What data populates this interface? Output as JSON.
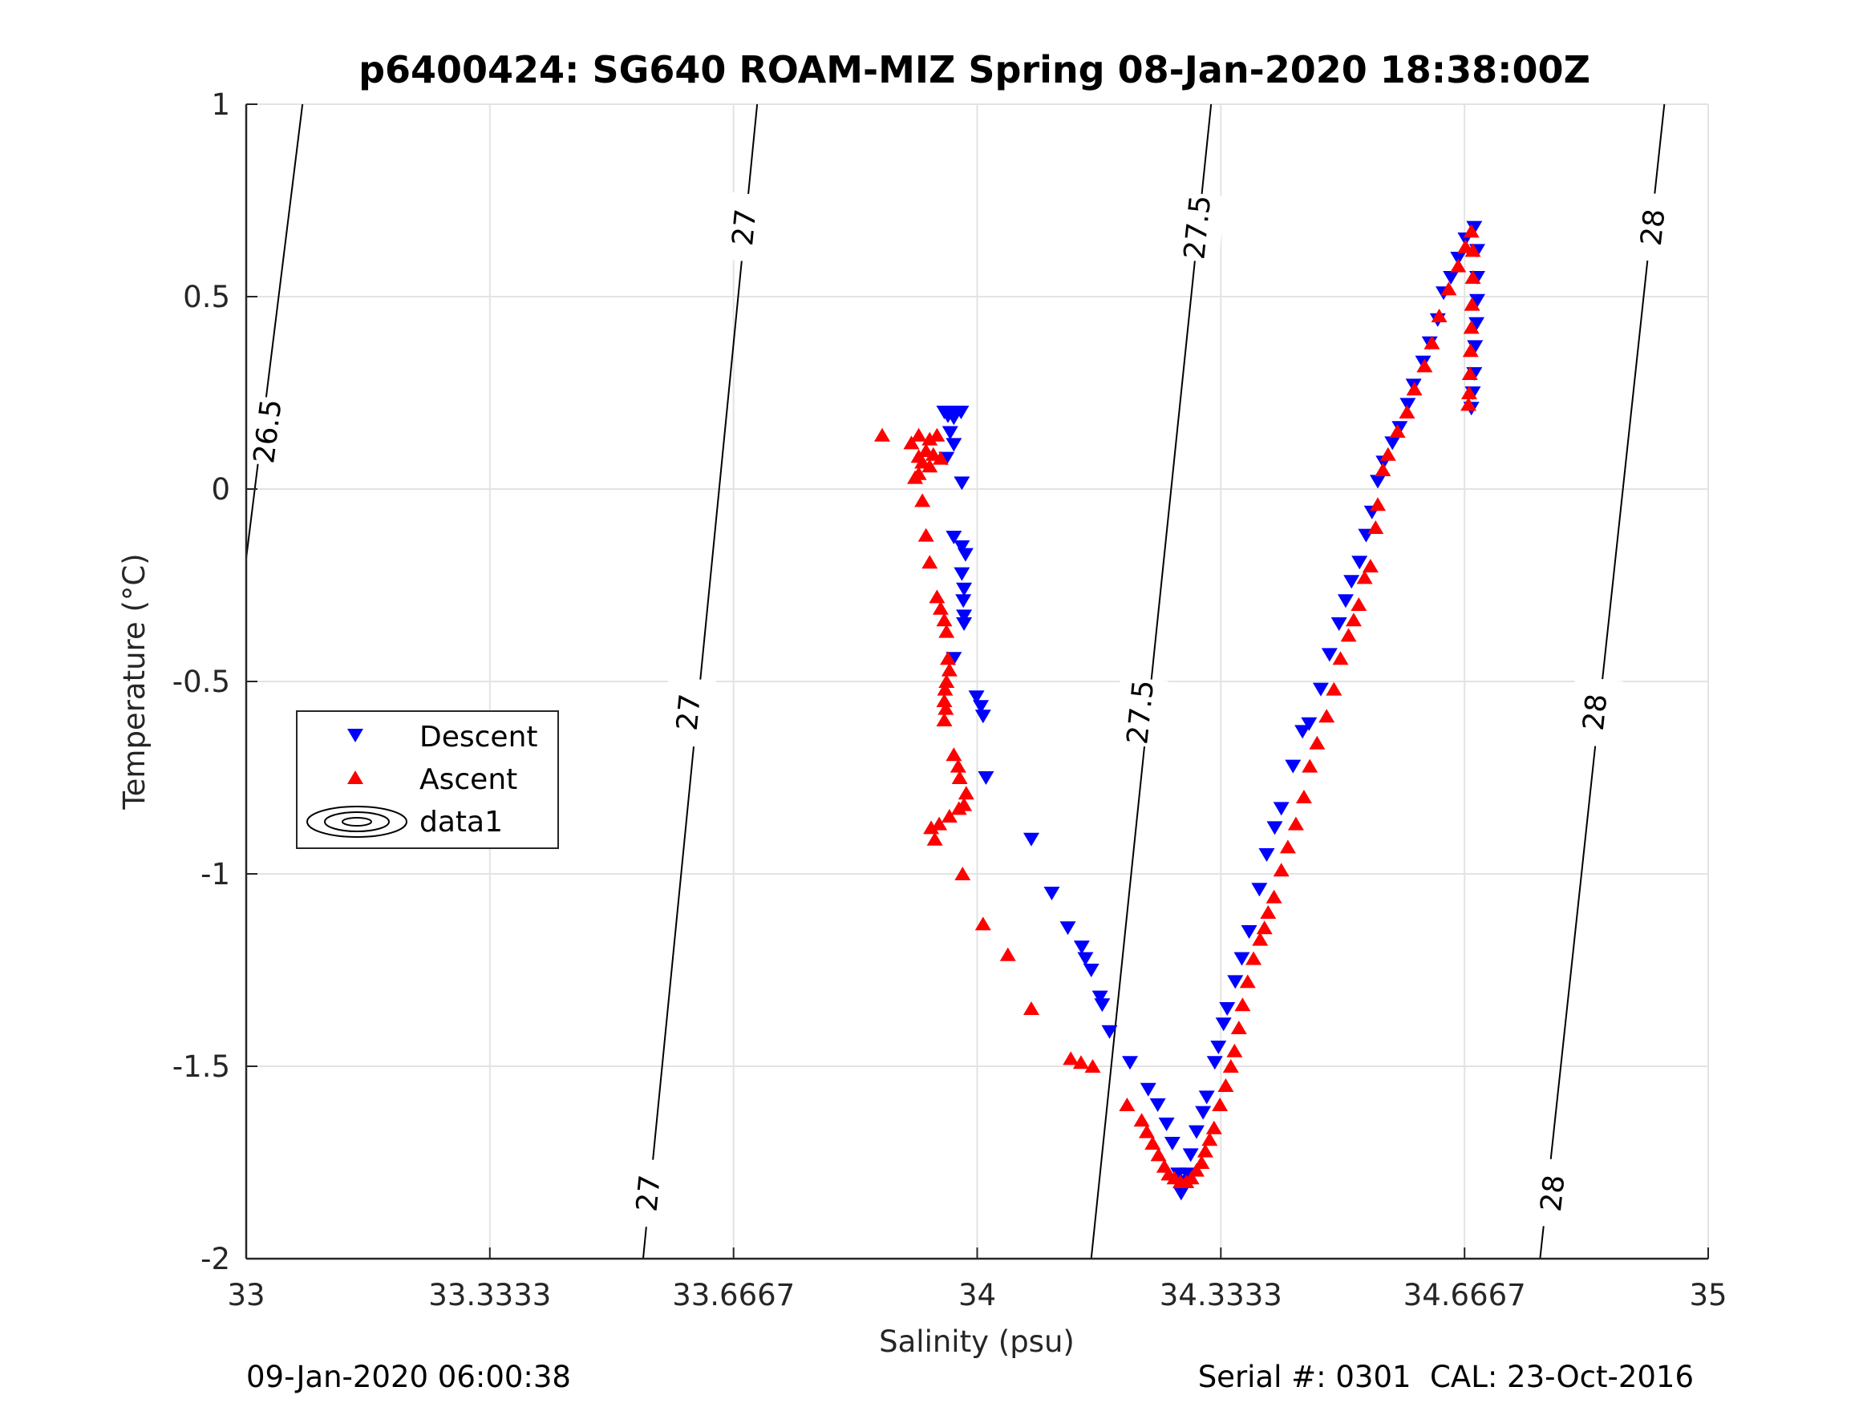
{
  "chart_data": {
    "type": "scatter",
    "title": "p6400424: SG640 ROAM-MIZ Spring 08-Jan-2020 18:38:00Z",
    "xlabel": "Salinity (psu)",
    "ylabel": "Temperature (°C)",
    "xlim": [
      33,
      35
    ],
    "ylim": [
      -2,
      1
    ],
    "xticks": [
      33,
      33.3333,
      33.6667,
      34,
      34.3333,
      34.6667,
      35
    ],
    "xtick_labels": [
      "33",
      "33.3333",
      "33.6667",
      "34",
      "34.3333",
      "34.6667",
      "35"
    ],
    "yticks": [
      -2,
      -1.5,
      -1,
      -0.5,
      0,
      0.5,
      1
    ],
    "ytick_labels": [
      "-2",
      "-1.5",
      "-1",
      "-0.5",
      "0",
      "0.5",
      "1"
    ],
    "grid": true,
    "legend": {
      "placement": "middle-left",
      "entries": [
        {
          "label": "Descent",
          "marker": "triangle-down",
          "color": "#0000ff"
        },
        {
          "label": "Ascent",
          "marker": "triangle-up",
          "color": "#ff0000"
        },
        {
          "label": "data1",
          "marker": "contour",
          "color": "#000000"
        }
      ]
    },
    "footer_left": "09-Jan-2020 06:00:38",
    "footer_right": "Serial #: 0301  CAL: 23-Oct-2016",
    "density_contours": [
      {
        "level": "26.5",
        "points": [
          [
            33.077,
            1.0
          ],
          [
            33.0,
            -0.18
          ]
        ],
        "labels": [
          {
            "text": "26.5",
            "at": [
              33.03,
              0.15
            ]
          }
        ]
      },
      {
        "level": "27",
        "points": [
          [
            33.699,
            1.0
          ],
          [
            33.543,
            -2.0
          ]
        ],
        "labels": [
          {
            "text": "27",
            "at": [
              33.682,
              0.68
            ]
          },
          {
            "text": "27",
            "at": [
              33.606,
              -0.58
            ]
          },
          {
            "text": "27",
            "at": [
              33.551,
              -1.83
            ]
          }
        ]
      },
      {
        "level": "27.5",
        "points": [
          [
            34.32,
            1.0
          ],
          [
            34.156,
            -2.0
          ]
        ],
        "labels": [
          {
            "text": "27.5",
            "at": [
              34.302,
              0.68
            ]
          },
          {
            "text": "27.5",
            "at": [
              34.224,
              -0.58
            ]
          }
        ]
      },
      {
        "level": "28",
        "points": [
          [
            34.94,
            1.0
          ],
          [
            34.77,
            -2.0
          ]
        ],
        "labels": [
          {
            "text": "28",
            "at": [
              34.925,
              0.68
            ]
          },
          {
            "text": "28",
            "at": [
              34.846,
              -0.58
            ]
          },
          {
            "text": "28",
            "at": [
              34.788,
              -1.83
            ]
          }
        ]
      }
    ],
    "series": [
      {
        "name": "Descent",
        "marker": "triangle-down",
        "color": "#0000ff",
        "points": [
          [
            33.955,
            0.2
          ],
          [
            33.962,
            0.2
          ],
          [
            33.97,
            0.2
          ],
          [
            33.978,
            0.2
          ],
          [
            33.96,
            0.19
          ],
          [
            33.968,
            0.185
          ],
          [
            33.963,
            0.147
          ],
          [
            33.968,
            0.116
          ],
          [
            33.958,
            0.08
          ],
          [
            33.979,
            0.016
          ],
          [
            33.968,
            -0.125
          ],
          [
            33.979,
            -0.15
          ],
          [
            33.984,
            -0.17
          ],
          [
            33.979,
            -0.22
          ],
          [
            33.982,
            -0.26
          ],
          [
            33.981,
            -0.29
          ],
          [
            33.982,
            -0.33
          ],
          [
            33.982,
            -0.35
          ],
          [
            33.968,
            -0.44
          ],
          [
            33.999,
            -0.54
          ],
          [
            34.005,
            -0.565
          ],
          [
            34.008,
            -0.59
          ],
          [
            34.012,
            -0.75
          ],
          [
            34.074,
            -0.91
          ],
          [
            34.102,
            -1.05
          ],
          [
            34.124,
            -1.14
          ],
          [
            34.143,
            -1.19
          ],
          [
            34.148,
            -1.22
          ],
          [
            34.156,
            -1.25
          ],
          [
            34.168,
            -1.32
          ],
          [
            34.171,
            -1.34
          ],
          [
            34.181,
            -1.41
          ],
          [
            34.209,
            -1.49
          ],
          [
            34.234,
            -1.56
          ],
          [
            34.247,
            -1.6
          ],
          [
            34.259,
            -1.65
          ],
          [
            34.267,
            -1.7
          ],
          [
            34.275,
            -1.78
          ],
          [
            34.279,
            -1.83
          ],
          [
            34.283,
            -1.8
          ],
          [
            34.287,
            -1.78
          ],
          [
            34.292,
            -1.73
          ],
          [
            34.3,
            -1.67
          ],
          [
            34.309,
            -1.62
          ],
          [
            34.314,
            -1.58
          ],
          [
            34.325,
            -1.49
          ],
          [
            34.33,
            -1.45
          ],
          [
            34.337,
            -1.39
          ],
          [
            34.342,
            -1.35
          ],
          [
            34.353,
            -1.28
          ],
          [
            34.362,
            -1.22
          ],
          [
            34.372,
            -1.15
          ],
          [
            34.386,
            -1.04
          ],
          [
            34.396,
            -0.95
          ],
          [
            34.407,
            -0.88
          ],
          [
            34.416,
            -0.83
          ],
          [
            34.432,
            -0.72
          ],
          [
            34.445,
            -0.63
          ],
          [
            34.454,
            -0.61
          ],
          [
            34.47,
            -0.52
          ],
          [
            34.482,
            -0.43
          ],
          [
            34.495,
            -0.35
          ],
          [
            34.504,
            -0.29
          ],
          [
            34.512,
            -0.24
          ],
          [
            34.523,
            -0.19
          ],
          [
            34.532,
            -0.12
          ],
          [
            34.54,
            -0.06
          ],
          [
            34.548,
            0.02
          ],
          [
            34.556,
            0.07
          ],
          [
            34.568,
            0.12
          ],
          [
            34.578,
            0.16
          ],
          [
            34.589,
            0.22
          ],
          [
            34.597,
            0.27
          ],
          [
            34.61,
            0.33
          ],
          [
            34.619,
            0.38
          ],
          [
            34.63,
            0.44
          ],
          [
            34.638,
            0.51
          ],
          [
            34.648,
            0.55
          ],
          [
            34.658,
            0.6
          ],
          [
            34.668,
            0.65
          ],
          [
            34.68,
            0.68
          ],
          [
            34.684,
            0.62
          ],
          [
            34.684,
            0.55
          ],
          [
            34.684,
            0.49
          ],
          [
            34.683,
            0.43
          ],
          [
            34.681,
            0.37
          ],
          [
            34.68,
            0.3
          ],
          [
            34.678,
            0.25
          ],
          [
            34.676,
            0.21
          ]
        ]
      },
      {
        "name": "Ascent",
        "marker": "triangle-up",
        "color": "#ff0000",
        "points": [
          [
            33.87,
            0.14
          ],
          [
            33.91,
            0.12
          ],
          [
            33.92,
            0.14
          ],
          [
            33.935,
            0.13
          ],
          [
            33.945,
            0.14
          ],
          [
            33.93,
            0.1
          ],
          [
            33.92,
            0.085
          ],
          [
            33.94,
            0.09
          ],
          [
            33.95,
            0.08
          ],
          [
            33.925,
            0.07
          ],
          [
            33.935,
            0.06
          ],
          [
            33.92,
            0.04
          ],
          [
            33.915,
            0.03
          ],
          [
            33.925,
            -0.03
          ],
          [
            33.93,
            -0.12
          ],
          [
            33.935,
            -0.19
          ],
          [
            33.945,
            -0.28
          ],
          [
            33.95,
            -0.31
          ],
          [
            33.955,
            -0.34
          ],
          [
            33.958,
            -0.37
          ],
          [
            33.96,
            -0.44
          ],
          [
            33.962,
            -0.47
          ],
          [
            33.958,
            -0.5
          ],
          [
            33.956,
            -0.52
          ],
          [
            33.955,
            -0.55
          ],
          [
            33.957,
            -0.57
          ],
          [
            33.955,
            -0.6
          ],
          [
            33.968,
            -0.69
          ],
          [
            33.974,
            -0.72
          ],
          [
            33.976,
            -0.75
          ],
          [
            33.985,
            -0.79
          ],
          [
            33.982,
            -0.82
          ],
          [
            33.975,
            -0.83
          ],
          [
            33.962,
            -0.85
          ],
          [
            33.948,
            -0.87
          ],
          [
            33.937,
            -0.88
          ],
          [
            33.942,
            -0.91
          ],
          [
            33.98,
            -1.0
          ],
          [
            34.008,
            -1.13
          ],
          [
            34.042,
            -1.21
          ],
          [
            34.074,
            -1.35
          ],
          [
            34.128,
            -1.48
          ],
          [
            34.142,
            -1.49
          ],
          [
            34.158,
            -1.5
          ],
          [
            34.205,
            -1.6
          ],
          [
            34.225,
            -1.64
          ],
          [
            34.232,
            -1.67
          ],
          [
            34.24,
            -1.7
          ],
          [
            34.248,
            -1.73
          ],
          [
            34.256,
            -1.76
          ],
          [
            34.262,
            -1.78
          ],
          [
            34.27,
            -1.79
          ],
          [
            34.278,
            -1.8
          ],
          [
            34.286,
            -1.8
          ],
          [
            34.293,
            -1.79
          ],
          [
            34.3,
            -1.77
          ],
          [
            34.307,
            -1.75
          ],
          [
            34.312,
            -1.72
          ],
          [
            34.318,
            -1.69
          ],
          [
            34.324,
            -1.66
          ],
          [
            34.332,
            -1.6
          ],
          [
            34.34,
            -1.55
          ],
          [
            34.347,
            -1.5
          ],
          [
            34.352,
            -1.46
          ],
          [
            34.358,
            -1.4
          ],
          [
            34.363,
            -1.34
          ],
          [
            34.37,
            -1.28
          ],
          [
            34.378,
            -1.22
          ],
          [
            34.387,
            -1.17
          ],
          [
            34.393,
            -1.14
          ],
          [
            34.398,
            -1.1
          ],
          [
            34.406,
            -1.06
          ],
          [
            34.416,
            -0.99
          ],
          [
            34.425,
            -0.93
          ],
          [
            34.436,
            -0.87
          ],
          [
            34.447,
            -0.8
          ],
          [
            34.455,
            -0.72
          ],
          [
            34.465,
            -0.66
          ],
          [
            34.478,
            -0.59
          ],
          [
            34.488,
            -0.52
          ],
          [
            34.497,
            -0.44
          ],
          [
            34.508,
            -0.38
          ],
          [
            34.515,
            -0.34
          ],
          [
            34.522,
            -0.3
          ],
          [
            34.53,
            -0.23
          ],
          [
            34.538,
            -0.2
          ],
          [
            34.545,
            -0.1
          ],
          [
            34.548,
            -0.04
          ],
          [
            34.555,
            0.05
          ],
          [
            34.562,
            0.09
          ],
          [
            34.575,
            0.15
          ],
          [
            34.588,
            0.2
          ],
          [
            34.598,
            0.26
          ],
          [
            34.612,
            0.32
          ],
          [
            34.622,
            0.38
          ],
          [
            34.632,
            0.45
          ],
          [
            34.645,
            0.52
          ],
          [
            34.658,
            0.58
          ],
          [
            34.668,
            0.63
          ],
          [
            34.676,
            0.67
          ],
          [
            34.678,
            0.62
          ],
          [
            34.678,
            0.55
          ],
          [
            34.677,
            0.48
          ],
          [
            34.676,
            0.42
          ],
          [
            34.675,
            0.36
          ],
          [
            34.674,
            0.3
          ],
          [
            34.673,
            0.25
          ],
          [
            34.672,
            0.22
          ]
        ]
      }
    ]
  }
}
